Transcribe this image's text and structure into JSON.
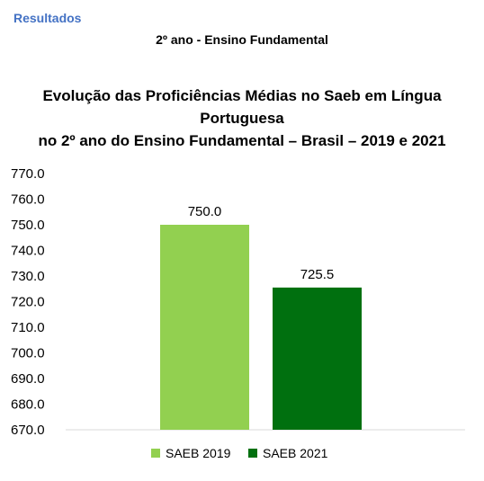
{
  "header": {
    "section": "Resultados",
    "subtitle": "2º ano - Ensino Fundamental"
  },
  "chart_data": {
    "type": "bar",
    "title_line1": "Evolução das Proficiências Médias no Saeb em Língua Portuguesa",
    "title_line2": "no 2º ano do Ensino Fundamental – Brasil – 2019 e 2021",
    "categories": [
      "SAEB 2019",
      "SAEB 2021"
    ],
    "values": [
      750.0,
      725.5
    ],
    "value_labels": [
      "750.0",
      "725.5"
    ],
    "colors": [
      "#92D050",
      "#00700F"
    ],
    "ylim": [
      670,
      770
    ],
    "yticks": [
      770,
      760,
      750,
      740,
      730,
      720,
      710,
      700,
      690,
      680,
      670
    ],
    "ytick_labels": [
      "770.0",
      "760.0",
      "750.0",
      "740.0",
      "730.0",
      "720.0",
      "710.0",
      "700.0",
      "690.0",
      "680.0",
      "670.0"
    ],
    "legend": [
      {
        "name": "SAEB 2019",
        "color": "#92D050"
      },
      {
        "name": "SAEB 2021",
        "color": "#00700F"
      }
    ],
    "legend_position": "bottom",
    "grid": false
  },
  "colors": {
    "accent": "#4472C4"
  }
}
